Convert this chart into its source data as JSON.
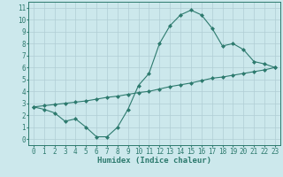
{
  "curve1_x": [
    0,
    1,
    2,
    3,
    4,
    5,
    6,
    7,
    8,
    9,
    10,
    11,
    12,
    13,
    14,
    15,
    16,
    17,
    18,
    19,
    20,
    21,
    22,
    23
  ],
  "curve1_y": [
    2.7,
    2.5,
    2.2,
    1.5,
    1.7,
    1.0,
    0.2,
    0.2,
    1.0,
    2.5,
    4.5,
    5.5,
    8.0,
    9.5,
    10.4,
    10.8,
    10.4,
    9.3,
    7.8,
    8.0,
    7.5,
    6.5,
    6.3,
    6.0
  ],
  "curve2_x": [
    0,
    1,
    2,
    3,
    4,
    5,
    6,
    7,
    8,
    9,
    10,
    11,
    12,
    13,
    14,
    15,
    16,
    17,
    18,
    19,
    20,
    21,
    22,
    23
  ],
  "curve2_y": [
    2.7,
    2.8,
    2.9,
    3.0,
    3.1,
    3.2,
    3.35,
    3.5,
    3.6,
    3.75,
    3.9,
    4.0,
    4.2,
    4.4,
    4.55,
    4.7,
    4.9,
    5.1,
    5.2,
    5.35,
    5.5,
    5.65,
    5.8,
    6.0
  ],
  "line_color": "#2d7a6e",
  "marker": "D",
  "marker_size": 2.0,
  "bg_color": "#cce8ec",
  "grid_color": "#b0cdd4",
  "xlabel": "Humidex (Indice chaleur)",
  "xlim": [
    -0.5,
    23.5
  ],
  "ylim": [
    -0.5,
    11.5
  ],
  "xticks": [
    0,
    1,
    2,
    3,
    4,
    5,
    6,
    7,
    8,
    9,
    10,
    11,
    12,
    13,
    14,
    15,
    16,
    17,
    18,
    19,
    20,
    21,
    22,
    23
  ],
  "yticks": [
    0,
    1,
    2,
    3,
    4,
    5,
    6,
    7,
    8,
    9,
    10,
    11
  ],
  "tick_labelsize": 5.5,
  "xlabel_fontsize": 6.5
}
